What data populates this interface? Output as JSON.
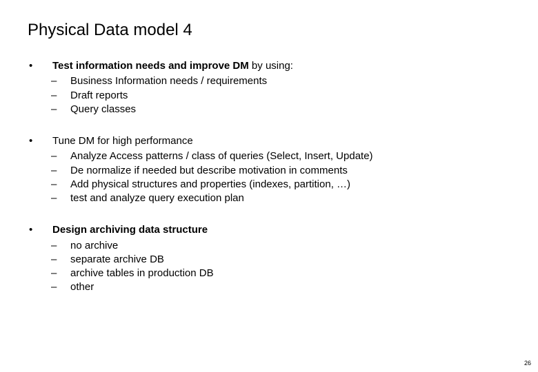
{
  "slide": {
    "title": "Physical Data model 4",
    "page_number": "26",
    "colors": {
      "background": "#ffffff",
      "text": "#000000"
    },
    "typography": {
      "title_fontsize": 24,
      "body_fontsize": 15,
      "font_family": "Arial"
    },
    "bullets": [
      {
        "lead_bold": "Test information needs and improve DM",
        "lead_rest": " by using:",
        "subs": [
          "Business Information needs / requirements",
          "Draft reports",
          "Query classes"
        ]
      },
      {
        "lead_plain": "Tune DM for high performance",
        "subs": [
          "Analyze Access patterns / class of queries (Select, Insert, Update)",
          "De normalize if needed but describe motivation in comments",
          "Add physical structures and properties (indexes, partition, …)",
          "test and analyze query execution plan"
        ]
      },
      {
        "lead_bold": "Design archiving data structure",
        "lead_rest": "",
        "subs": [
          "no archive",
          "separate archive DB",
          "archive tables in production DB",
          "other"
        ]
      }
    ]
  }
}
